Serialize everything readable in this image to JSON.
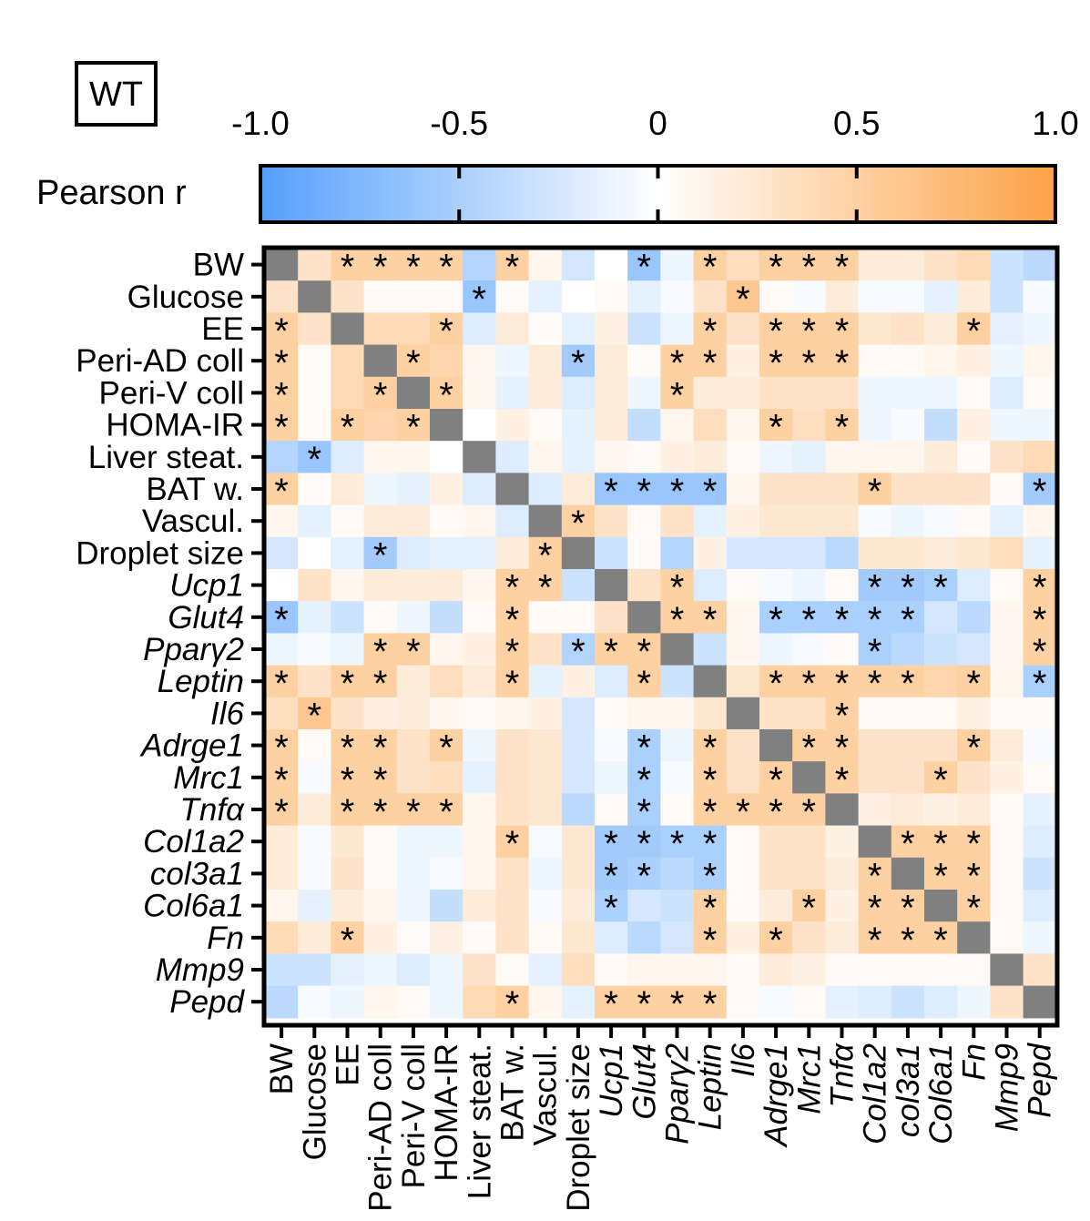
{
  "panel_label": "WT",
  "chart_data": {
    "type": "heatmap",
    "title": "WT",
    "colorbar": {
      "label": "Pearson r",
      "ticks": [
        -1.0,
        -0.5,
        0,
        0.5,
        1.0
      ],
      "tick_labels": [
        "-1.0",
        "-0.5",
        "0",
        "0.5",
        "1.0"
      ],
      "range": [
        -1.0,
        1.0
      ],
      "colors": {
        "negative": "#55a0fa",
        "neutral": "#ffffff",
        "positive": "#fca247",
        "diagonal": "#808080"
      }
    },
    "variables": [
      {
        "name": "BW",
        "italic": false
      },
      {
        "name": "Glucose",
        "italic": false
      },
      {
        "name": "EE",
        "italic": false
      },
      {
        "name": "Peri-AD coll",
        "italic": false
      },
      {
        "name": "Peri-V coll",
        "italic": false
      },
      {
        "name": "HOMA-IR",
        "italic": false
      },
      {
        "name": "Liver steat.",
        "italic": false
      },
      {
        "name": "BAT w.",
        "italic": false
      },
      {
        "name": "Vascul.",
        "italic": false
      },
      {
        "name": "Droplet size",
        "italic": false
      },
      {
        "name": "Ucp1",
        "italic": true
      },
      {
        "name": "Glut4",
        "italic": true
      },
      {
        "name": "Pparγ2",
        "italic": true
      },
      {
        "name": "Leptin",
        "italic": true
      },
      {
        "name": "Il6",
        "italic": true
      },
      {
        "name": "Adrge1",
        "italic": true
      },
      {
        "name": "Mrc1",
        "italic": true
      },
      {
        "name": "Tnfα",
        "italic": true
      },
      {
        "name": "Col1a2",
        "italic": true
      },
      {
        "name": "col3a1",
        "italic": true
      },
      {
        "name": "Col6a1",
        "italic": true
      },
      {
        "name": "Fn",
        "italic": true
      },
      {
        "name": "Mmp9",
        "italic": true
      },
      {
        "name": "Pepd",
        "italic": true
      }
    ],
    "matrix": [
      [
        1,
        0.3,
        0.5,
        0.5,
        0.5,
        0.5,
        -0.45,
        0.5,
        0.1,
        -0.25,
        0,
        -0.6,
        -0.1,
        0.5,
        0.35,
        0.5,
        0.5,
        0.5,
        0.2,
        0.2,
        0.3,
        0.4,
        -0.3,
        -0.4
      ],
      [
        0.3,
        1,
        0.3,
        0.05,
        0.05,
        0.05,
        -0.6,
        0.05,
        -0.15,
        0,
        0.05,
        -0.15,
        -0.05,
        0.3,
        0.6,
        0.05,
        -0.05,
        0.2,
        -0.05,
        -0.05,
        -0.15,
        0.2,
        -0.3,
        -0.05
      ],
      [
        0.5,
        0.3,
        1,
        0.4,
        0.4,
        0.5,
        -0.2,
        0.2,
        0.05,
        -0.15,
        0.15,
        -0.3,
        -0.1,
        0.5,
        0.3,
        0.5,
        0.5,
        0.5,
        0.25,
        0.3,
        0.2,
        0.5,
        -0.15,
        -0.1
      ],
      [
        0.5,
        0.05,
        0.4,
        1,
        0.5,
        0.45,
        0.1,
        -0.1,
        0.2,
        -0.55,
        0.2,
        0.05,
        0.5,
        0.5,
        0.15,
        0.5,
        0.5,
        0.5,
        0.05,
        0.05,
        0.1,
        0.15,
        -0.1,
        0.1
      ],
      [
        0.5,
        0.05,
        0.4,
        0.5,
        1,
        0.5,
        0.1,
        -0.15,
        0.2,
        -0.2,
        0.2,
        -0.1,
        0.5,
        0.2,
        0.2,
        0.3,
        0.3,
        0.3,
        -0.1,
        -0.1,
        -0.1,
        0.05,
        -0.2,
        0.05
      ],
      [
        0.5,
        0.05,
        0.5,
        0.45,
        0.5,
        1,
        0,
        0.15,
        0.05,
        -0.15,
        0.2,
        -0.35,
        0.1,
        0.35,
        0.1,
        0.5,
        0.35,
        0.5,
        -0.1,
        -0.05,
        -0.35,
        0.15,
        -0.1,
        -0.1
      ],
      [
        -0.45,
        -0.6,
        -0.2,
        0.1,
        0.1,
        0,
        1,
        -0.2,
        0.1,
        -0.15,
        0.1,
        0.05,
        0.15,
        0.2,
        0.05,
        -0.1,
        -0.15,
        0.1,
        0.1,
        0.1,
        0.2,
        0.05,
        0.3,
        0.4
      ],
      [
        0.5,
        0.05,
        0.2,
        -0.1,
        -0.15,
        0.15,
        -0.2,
        1,
        -0.2,
        0.2,
        -0.6,
        -0.6,
        -0.6,
        -0.6,
        0.1,
        0.3,
        0.3,
        0.3,
        0.5,
        0.3,
        0.3,
        0.3,
        0.05,
        -0.55
      ],
      [
        0.1,
        -0.15,
        0.05,
        0.2,
        0.2,
        0.05,
        0.1,
        -0.2,
        1,
        0.5,
        0.3,
        0.05,
        0.3,
        -0.15,
        0.15,
        0.25,
        0.25,
        0.25,
        -0.05,
        -0.1,
        -0.05,
        0.05,
        -0.15,
        0.1
      ],
      [
        -0.25,
        0,
        -0.15,
        -0.55,
        -0.2,
        -0.15,
        -0.15,
        0.2,
        0.5,
        1,
        -0.3,
        0.05,
        -0.45,
        0.15,
        -0.25,
        -0.25,
        -0.25,
        -0.4,
        0.25,
        0.25,
        0.2,
        0.25,
        0.35,
        -0.15
      ],
      [
        0,
        0.3,
        0.1,
        0.2,
        0.2,
        0.2,
        0.1,
        0.5,
        0.5,
        -0.3,
        1,
        0.3,
        0.5,
        -0.2,
        0.05,
        -0.05,
        -0.1,
        0.05,
        -0.55,
        -0.55,
        -0.5,
        -0.2,
        0.05,
        0.5
      ],
      [
        -0.6,
        -0.15,
        -0.3,
        0.05,
        -0.1,
        -0.35,
        0.05,
        0.5,
        0.05,
        0.05,
        0.3,
        1,
        0.5,
        0.5,
        0.1,
        -0.5,
        -0.5,
        -0.5,
        -0.5,
        -0.5,
        -0.25,
        -0.4,
        0.1,
        0.5
      ],
      [
        -0.1,
        -0.05,
        -0.1,
        0.5,
        0.5,
        0.1,
        0.15,
        0.5,
        0.3,
        -0.45,
        0.5,
        0.5,
        1,
        -0.3,
        0.1,
        -0.1,
        -0.05,
        0.05,
        -0.5,
        -0.4,
        -0.3,
        -0.25,
        0.1,
        0.5
      ],
      [
        0.5,
        0.3,
        0.5,
        0.5,
        0.2,
        0.35,
        0.2,
        0.5,
        -0.15,
        0.15,
        -0.2,
        0.5,
        -0.3,
        1,
        0.25,
        0.5,
        0.5,
        0.5,
        0.5,
        0.5,
        0.45,
        0.5,
        0.1,
        -0.5
      ],
      [
        0.35,
        0.6,
        0.3,
        0.15,
        0.2,
        0.1,
        0.05,
        0.1,
        0.15,
        -0.25,
        0.05,
        0.1,
        0.1,
        0.25,
        1,
        0.3,
        0.3,
        0.5,
        0.05,
        0.05,
        0.05,
        0.15,
        0.05,
        0.05
      ],
      [
        0.5,
        0.05,
        0.5,
        0.5,
        0.3,
        0.5,
        -0.1,
        0.3,
        0.25,
        -0.25,
        -0.05,
        -0.5,
        -0.1,
        0.5,
        0.3,
        1,
        0.5,
        0.5,
        0.3,
        0.3,
        0.3,
        0.5,
        0.2,
        -0.05
      ],
      [
        0.5,
        -0.05,
        0.5,
        0.5,
        0.3,
        0.35,
        -0.15,
        0.3,
        0.25,
        -0.25,
        -0.1,
        -0.5,
        -0.05,
        0.5,
        0.3,
        0.5,
        1,
        0.5,
        0.3,
        0.3,
        0.5,
        0.3,
        0.15,
        0.05
      ],
      [
        0.5,
        0.2,
        0.5,
        0.5,
        0.5,
        0.5,
        0.1,
        0.3,
        0.25,
        -0.4,
        0.05,
        -0.5,
        0.05,
        0.5,
        0.5,
        0.5,
        0.5,
        1,
        0.15,
        0.2,
        0.15,
        0.2,
        0.05,
        -0.15
      ],
      [
        0.2,
        -0.05,
        0.25,
        0.05,
        -0.1,
        -0.1,
        0.1,
        0.5,
        -0.05,
        0.25,
        -0.55,
        -0.55,
        -0.5,
        -0.5,
        0.05,
        0.3,
        0.3,
        0.15,
        1,
        0.5,
        0.5,
        0.5,
        0.05,
        -0.2
      ],
      [
        0.2,
        -0.05,
        0.3,
        0.05,
        -0.1,
        -0.05,
        0.1,
        0.3,
        -0.1,
        0.25,
        -0.55,
        -0.5,
        -0.4,
        -0.5,
        0.05,
        0.3,
        0.3,
        0.2,
        0.5,
        1,
        0.5,
        0.5,
        0.05,
        -0.3
      ],
      [
        0.1,
        -0.15,
        0.2,
        0.1,
        -0.1,
        -0.35,
        0.2,
        0.3,
        -0.05,
        0.2,
        -0.5,
        -0.25,
        -0.3,
        0.5,
        0.05,
        0.2,
        0.5,
        0.15,
        0.5,
        0.5,
        1,
        0.5,
        0.05,
        -0.2
      ],
      [
        0.4,
        0.2,
        0.5,
        0.15,
        0.05,
        0.15,
        0.05,
        0.3,
        0.05,
        0.25,
        -0.2,
        -0.4,
        -0.25,
        0.5,
        0.15,
        0.5,
        0.3,
        0.2,
        0.5,
        0.5,
        0.5,
        1,
        0.05,
        -0.1
      ],
      [
        -0.3,
        -0.3,
        -0.15,
        -0.1,
        -0.2,
        -0.1,
        0.3,
        0.05,
        -0.15,
        0.35,
        0.05,
        0.1,
        0.1,
        0.1,
        0.05,
        0.2,
        0.15,
        0.05,
        0.05,
        0.05,
        0.05,
        0.05,
        1,
        0.3
      ],
      [
        -0.4,
        -0.05,
        -0.1,
        0.1,
        0.05,
        -0.1,
        0.4,
        0.5,
        0.1,
        -0.15,
        0.5,
        0.5,
        0.5,
        0.5,
        0.05,
        -0.05,
        0.05,
        -0.15,
        -0.2,
        -0.3,
        -0.2,
        -0.1,
        0.3,
        1
      ]
    ],
    "significant": [
      [
        0,
        2
      ],
      [
        0,
        3
      ],
      [
        0,
        4
      ],
      [
        0,
        5
      ],
      [
        0,
        7
      ],
      [
        0,
        11
      ],
      [
        0,
        13
      ],
      [
        0,
        15
      ],
      [
        0,
        16
      ],
      [
        0,
        17
      ],
      [
        1,
        6
      ],
      [
        1,
        14
      ],
      [
        2,
        0
      ],
      [
        2,
        5
      ],
      [
        2,
        13
      ],
      [
        2,
        15
      ],
      [
        2,
        16
      ],
      [
        2,
        17
      ],
      [
        2,
        21
      ],
      [
        3,
        0
      ],
      [
        3,
        4
      ],
      [
        3,
        9
      ],
      [
        3,
        12
      ],
      [
        3,
        13
      ],
      [
        3,
        15
      ],
      [
        3,
        16
      ],
      [
        3,
        17
      ],
      [
        4,
        0
      ],
      [
        4,
        3
      ],
      [
        4,
        5
      ],
      [
        4,
        12
      ],
      [
        5,
        0
      ],
      [
        5,
        2
      ],
      [
        5,
        4
      ],
      [
        5,
        15
      ],
      [
        5,
        17
      ],
      [
        6,
        1
      ],
      [
        7,
        0
      ],
      [
        7,
        10
      ],
      [
        7,
        11
      ],
      [
        7,
        12
      ],
      [
        7,
        13
      ],
      [
        7,
        18
      ],
      [
        7,
        23
      ],
      [
        8,
        9
      ],
      [
        9,
        3
      ],
      [
        9,
        8
      ],
      [
        10,
        7
      ],
      [
        10,
        8
      ],
      [
        10,
        12
      ],
      [
        10,
        18
      ],
      [
        10,
        19
      ],
      [
        10,
        20
      ],
      [
        10,
        23
      ],
      [
        11,
        0
      ],
      [
        11,
        7
      ],
      [
        11,
        12
      ],
      [
        11,
        13
      ],
      [
        11,
        15
      ],
      [
        11,
        16
      ],
      [
        11,
        17
      ],
      [
        11,
        18
      ],
      [
        11,
        19
      ],
      [
        11,
        23
      ],
      [
        12,
        3
      ],
      [
        12,
        4
      ],
      [
        12,
        7
      ],
      [
        12,
        9
      ],
      [
        12,
        10
      ],
      [
        12,
        11
      ],
      [
        12,
        18
      ],
      [
        12,
        23
      ],
      [
        13,
        0
      ],
      [
        13,
        2
      ],
      [
        13,
        3
      ],
      [
        13,
        7
      ],
      [
        13,
        11
      ],
      [
        13,
        15
      ],
      [
        13,
        16
      ],
      [
        13,
        17
      ],
      [
        13,
        18
      ],
      [
        13,
        19
      ],
      [
        13,
        21
      ],
      [
        13,
        23
      ],
      [
        14,
        1
      ],
      [
        14,
        17
      ],
      [
        15,
        0
      ],
      [
        15,
        2
      ],
      [
        15,
        3
      ],
      [
        15,
        5
      ],
      [
        15,
        11
      ],
      [
        15,
        13
      ],
      [
        15,
        16
      ],
      [
        15,
        17
      ],
      [
        15,
        21
      ],
      [
        16,
        0
      ],
      [
        16,
        2
      ],
      [
        16,
        3
      ],
      [
        16,
        11
      ],
      [
        16,
        13
      ],
      [
        16,
        15
      ],
      [
        16,
        17
      ],
      [
        16,
        20
      ],
      [
        17,
        0
      ],
      [
        17,
        2
      ],
      [
        17,
        3
      ],
      [
        17,
        4
      ],
      [
        17,
        5
      ],
      [
        17,
        11
      ],
      [
        17,
        13
      ],
      [
        17,
        14
      ],
      [
        17,
        15
      ],
      [
        17,
        16
      ],
      [
        18,
        7
      ],
      [
        18,
        10
      ],
      [
        18,
        11
      ],
      [
        18,
        12
      ],
      [
        18,
        13
      ],
      [
        18,
        19
      ],
      [
        18,
        20
      ],
      [
        18,
        21
      ],
      [
        19,
        10
      ],
      [
        19,
        11
      ],
      [
        19,
        13
      ],
      [
        19,
        18
      ],
      [
        19,
        20
      ],
      [
        19,
        21
      ],
      [
        20,
        10
      ],
      [
        20,
        13
      ],
      [
        20,
        16
      ],
      [
        20,
        18
      ],
      [
        20,
        19
      ],
      [
        20,
        21
      ],
      [
        21,
        2
      ],
      [
        21,
        13
      ],
      [
        21,
        15
      ],
      [
        21,
        18
      ],
      [
        21,
        19
      ],
      [
        21,
        20
      ],
      [
        23,
        7
      ],
      [
        23,
        10
      ],
      [
        23,
        11
      ],
      [
        23,
        12
      ],
      [
        23,
        13
      ]
    ],
    "star_symbol": "*"
  }
}
